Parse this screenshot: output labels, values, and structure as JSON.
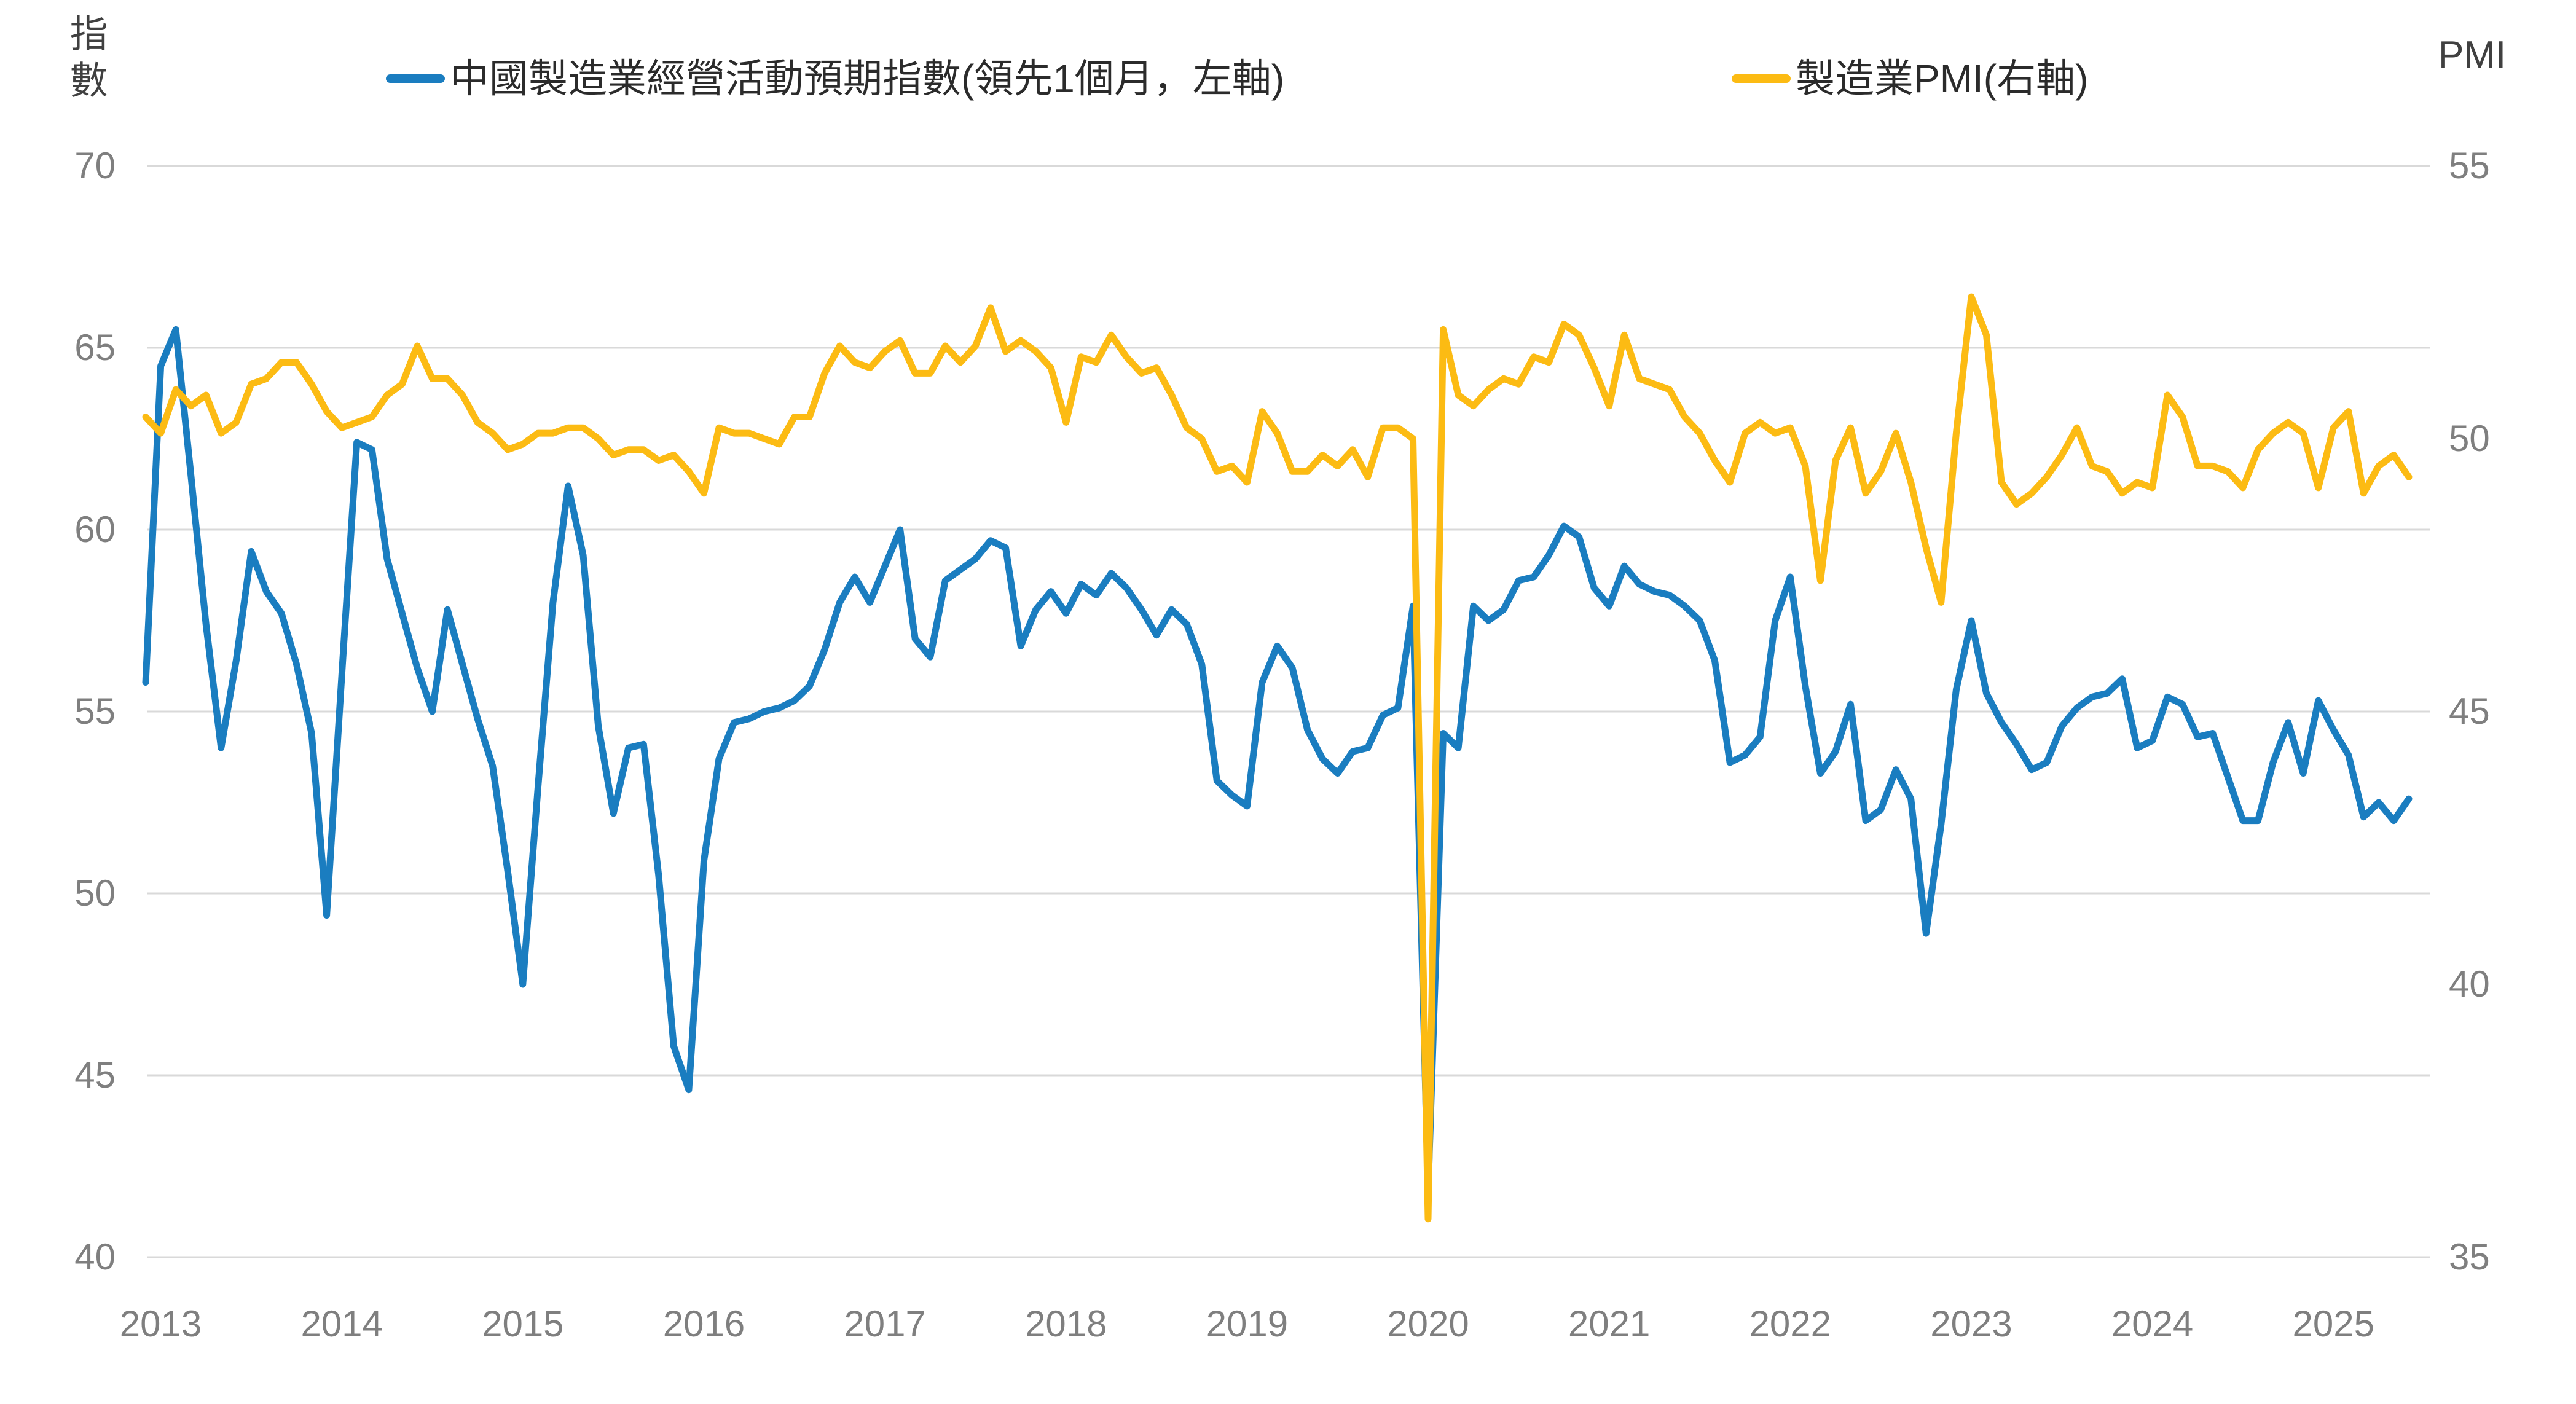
{
  "page": {
    "background": "#ffffff"
  },
  "legend": {
    "items": [
      {
        "label": "中國製造業經營活動預期指數(領先1個月，左軸)",
        "color": "#1A7DC0"
      },
      {
        "label": "製造業PMI(右軸)",
        "color": "#FCBB13"
      }
    ]
  },
  "chart_data": {
    "type": "line",
    "title": "",
    "grid": "horizontal-only",
    "legend_position": "top",
    "background": "#ffffff",
    "gridline_color": "#D9D9D9",
    "tick_label_color": "#7f7f7f",
    "frequency": "monthly",
    "x_start": "2013-01",
    "x_end": "2025-07",
    "x_axis": {
      "tick_labels": [
        "2013",
        "2014",
        "2015",
        "2016",
        "2017",
        "2018",
        "2019",
        "2020",
        "2021",
        "2022",
        "2023",
        "2024",
        "2025"
      ]
    },
    "left_axis": {
      "title": "指數",
      "range": [
        40,
        70
      ],
      "ticks": [
        70,
        65,
        60,
        55,
        50,
        45,
        40
      ]
    },
    "right_axis": {
      "title": "PMI",
      "range": [
        35,
        55
      ],
      "ticks": [
        55,
        50,
        45,
        40,
        35
      ]
    },
    "series": [
      {
        "name": "中國製造業經營活動預期指數(領先1個月，左軸)",
        "axis": "left",
        "color": "#1A7DC0",
        "line_width": 11,
        "values": [
          55.8,
          64.5,
          65.5,
          61.5,
          57.4,
          54.0,
          56.4,
          59.4,
          58.3,
          57.7,
          56.3,
          54.4,
          49.4,
          56.0,
          62.4,
          62.2,
          59.2,
          57.7,
          56.2,
          55.0,
          57.8,
          56.3,
          54.8,
          53.5,
          50.6,
          47.5,
          52.9,
          58.0,
          61.2,
          59.3,
          54.6,
          52.2,
          54.0,
          54.1,
          50.5,
          45.8,
          44.6,
          50.9,
          53.7,
          54.7,
          54.8,
          55.0,
          55.1,
          55.3,
          55.7,
          56.7,
          58.0,
          58.7,
          58.0,
          59.0,
          60.0,
          57.0,
          56.5,
          58.6,
          58.9,
          59.2,
          59.7,
          59.5,
          56.8,
          57.8,
          58.3,
          57.7,
          58.5,
          58.2,
          58.8,
          58.4,
          57.8,
          57.1,
          57.8,
          57.4,
          56.3,
          53.1,
          52.7,
          52.4,
          55.8,
          56.8,
          56.2,
          54.5,
          53.7,
          53.3,
          53.9,
          54.0,
          54.9,
          55.1,
          57.9,
          41.8,
          54.4,
          54.0,
          57.9,
          57.5,
          57.8,
          58.6,
          58.7,
          59.3,
          60.1,
          59.8,
          58.4,
          57.9,
          59.0,
          58.5,
          58.3,
          58.2,
          57.9,
          57.5,
          56.4,
          53.6,
          53.8,
          54.3,
          57.5,
          58.7,
          55.7,
          53.3,
          53.9,
          55.2,
          52.0,
          52.3,
          53.4,
          52.6,
          48.9,
          51.9,
          55.6,
          57.5,
          55.5,
          54.7,
          54.1,
          53.4,
          53.6,
          54.6,
          55.1,
          55.4,
          55.5,
          55.9,
          54.0,
          54.2,
          55.4,
          55.2,
          54.3,
          54.4,
          53.2,
          52.0,
          52.0,
          53.6,
          54.7,
          53.3,
          55.3,
          54.5,
          53.8,
          52.1,
          52.5,
          52.0,
          52.6
        ]
      },
      {
        "name": "製造業PMI(右軸)",
        "axis": "right",
        "color": "#FCBB13",
        "line_width": 11,
        "values": [
          50.4,
          50.1,
          50.9,
          50.6,
          50.8,
          50.1,
          50.3,
          51.0,
          51.1,
          51.4,
          51.4,
          51.0,
          50.5,
          50.2,
          50.3,
          50.4,
          50.8,
          51.0,
          51.7,
          51.1,
          51.1,
          50.8,
          50.3,
          50.1,
          49.8,
          49.9,
          50.1,
          50.1,
          50.2,
          50.2,
          50.0,
          49.7,
          49.8,
          49.8,
          49.6,
          49.7,
          49.4,
          49.0,
          50.2,
          50.1,
          50.1,
          50.0,
          49.9,
          50.4,
          50.4,
          51.2,
          51.7,
          51.4,
          51.3,
          51.6,
          51.8,
          51.2,
          51.2,
          51.7,
          51.4,
          51.7,
          52.4,
          51.6,
          51.8,
          51.6,
          51.3,
          50.3,
          51.5,
          51.4,
          51.9,
          51.5,
          51.2,
          51.3,
          50.8,
          50.2,
          50.0,
          49.4,
          49.5,
          49.2,
          50.5,
          50.1,
          49.4,
          49.4,
          49.7,
          49.5,
          49.8,
          49.3,
          50.2,
          50.2,
          50.0,
          35.7,
          52.0,
          50.8,
          50.6,
          50.9,
          51.1,
          51.0,
          51.5,
          51.4,
          52.1,
          51.9,
          51.3,
          50.6,
          51.9,
          51.1,
          51.0,
          50.9,
          50.4,
          50.1,
          49.6,
          49.2,
          50.1,
          50.3,
          50.1,
          50.2,
          49.5,
          47.4,
          49.6,
          50.2,
          49.0,
          49.4,
          50.1,
          49.2,
          48.0,
          47.0,
          50.1,
          52.6,
          51.9,
          49.2,
          48.8,
          49.0,
          49.3,
          49.7,
          50.2,
          49.5,
          49.4,
          49.0,
          49.2,
          49.1,
          50.8,
          50.4,
          49.5,
          49.5,
          49.4,
          49.1,
          49.8,
          50.1,
          50.3,
          50.1,
          49.1,
          50.2,
          50.5,
          49.0,
          49.5,
          49.7,
          49.3
        ]
      }
    ],
    "layout": {
      "plot_left": 237,
      "plot_right": 3920,
      "plot_top": 270,
      "plot_bottom": 2046,
      "grid_x1": 240,
      "grid_x2": 3955,
      "x_tick_center_y": 2155,
      "legend_item_x": [
        628,
        2818
      ]
    }
  }
}
